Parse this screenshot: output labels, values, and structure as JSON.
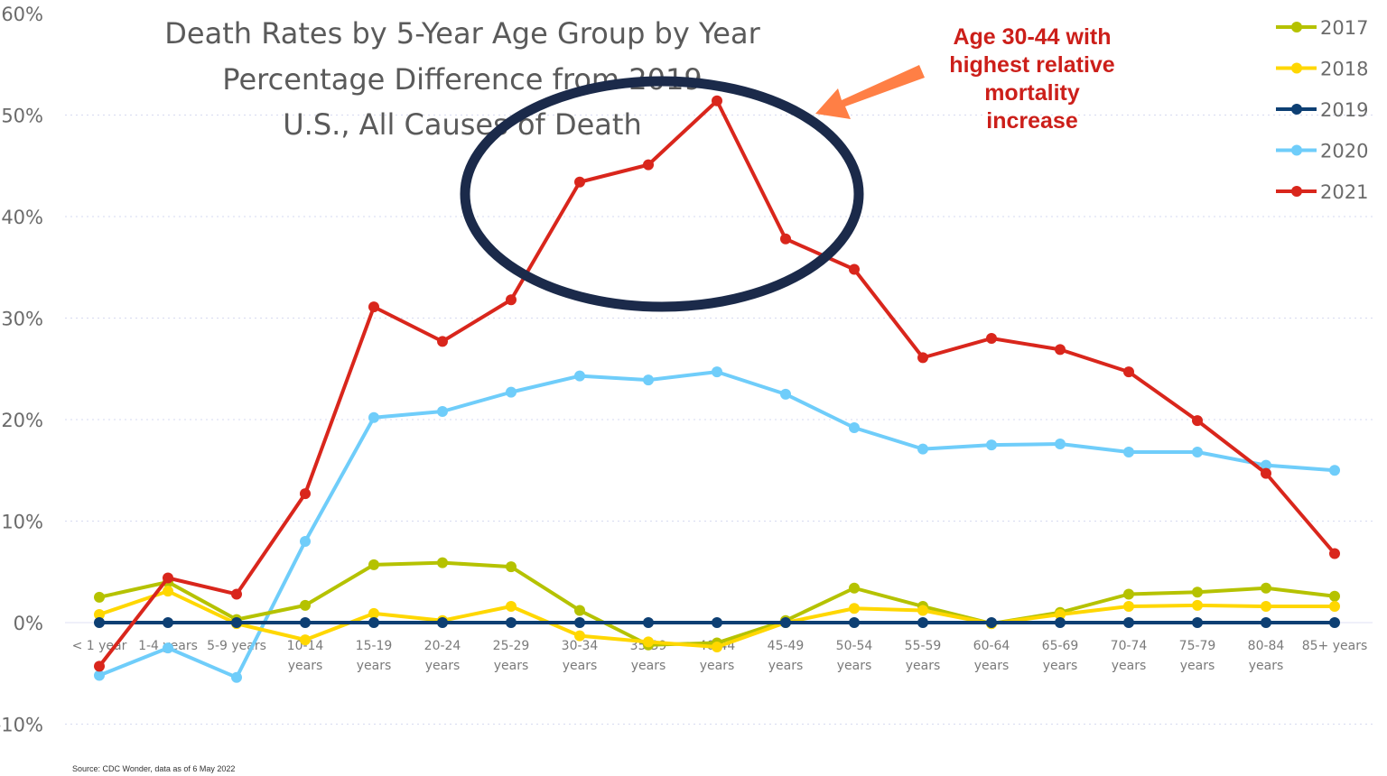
{
  "chart_data": {
    "type": "line",
    "title": "Death Rates by 5-Year Age Group by Year",
    "subtitle_lines": [
      "Percentage Difference from 2019",
      "U.S., All Causes of Death"
    ],
    "xlabel": "",
    "ylabel": "",
    "ylim": [
      -10,
      60
    ],
    "yticks": [
      "-10%",
      "0%",
      "10%",
      "20%",
      "30%",
      "40%",
      "50%",
      "60%"
    ],
    "ytick_values": [
      -10,
      0,
      10,
      20,
      30,
      40,
      50,
      60
    ],
    "grid": "horizontal dotted",
    "legend_position": "right-top",
    "categories": [
      "< 1 year",
      "1-4 years",
      "5-9 years",
      "10-14 years",
      "15-19 years",
      "20-24 years",
      "25-29 years",
      "30-34 years",
      "35-39 years",
      "40-44 years",
      "45-49 years",
      "50-54 years",
      "55-59 years",
      "60-64 years",
      "65-69 years",
      "70-74 years",
      "75-79 years",
      "80-84 years",
      "85+ years"
    ],
    "category_lines": [
      [
        "< 1 year"
      ],
      [
        "1-4 years"
      ],
      [
        "5-9 years"
      ],
      [
        "10-14",
        "years"
      ],
      [
        "15-19",
        "years"
      ],
      [
        "20-24",
        "years"
      ],
      [
        "25-29",
        "years"
      ],
      [
        "30-34",
        "years"
      ],
      [
        "35-39",
        "years"
      ],
      [
        "40-44",
        "years"
      ],
      [
        "45-49",
        "years"
      ],
      [
        "50-54",
        "years"
      ],
      [
        "55-59",
        "years"
      ],
      [
        "60-64",
        "years"
      ],
      [
        "65-69",
        "years"
      ],
      [
        "70-74",
        "years"
      ],
      [
        "75-79",
        "years"
      ],
      [
        "80-84",
        "years"
      ],
      [
        "85+ years"
      ]
    ],
    "series": [
      {
        "name": "2017",
        "color": "#b5c200",
        "values": [
          2.5,
          4.0,
          0.3,
          1.7,
          5.7,
          5.9,
          5.5,
          1.2,
          -2.2,
          -2.0,
          0.2,
          3.4,
          1.6,
          -0.1,
          1.0,
          2.8,
          3.0,
          3.4,
          2.6
        ]
      },
      {
        "name": "2018",
        "color": "#ffd700",
        "values": [
          0.8,
          3.1,
          -0.1,
          -1.7,
          0.9,
          0.2,
          1.6,
          -1.3,
          -1.9,
          -2.4,
          0.0,
          1.4,
          1.2,
          -0.1,
          0.8,
          1.6,
          1.7,
          1.6,
          1.6
        ]
      },
      {
        "name": "2019",
        "color": "#0d3f73",
        "values": [
          0,
          0,
          0,
          0,
          0,
          0,
          0,
          0,
          0,
          0,
          0,
          0,
          0,
          0,
          0,
          0,
          0,
          0,
          0
        ]
      },
      {
        "name": "2020",
        "color": "#6fcdfa",
        "values": [
          -5.2,
          -2.5,
          -5.4,
          8.0,
          20.2,
          20.8,
          22.7,
          24.3,
          23.9,
          24.7,
          22.5,
          19.2,
          17.1,
          17.5,
          17.6,
          16.8,
          16.8,
          15.5,
          15.0
        ]
      },
      {
        "name": "2021",
        "color": "#d9261c",
        "values": [
          -4.3,
          4.4,
          2.8,
          12.7,
          31.1,
          27.7,
          31.8,
          43.4,
          45.1,
          51.4,
          37.8,
          34.8,
          26.1,
          28.0,
          26.9,
          24.7,
          19.9,
          14.7,
          6.8
        ]
      }
    ],
    "annotations": [
      {
        "type": "text",
        "lines": [
          "Age 30-44 with",
          "highest relative",
          "mortality",
          "increase"
        ],
        "color": "#cc1f1a"
      },
      {
        "type": "ellipse",
        "target": "30-44 years peak of 2021 series",
        "color": "#1b2a4a"
      },
      {
        "type": "arrow",
        "color": "#ff7f45"
      }
    ],
    "source": "Source: CDC Wonder, data as of 6 May 2022"
  }
}
